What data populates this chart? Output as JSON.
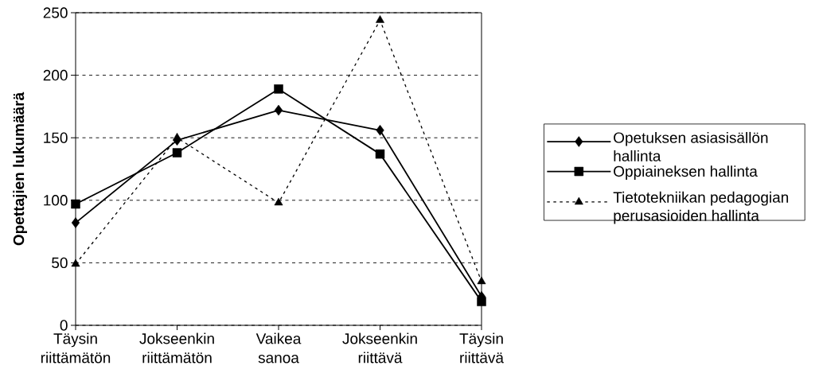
{
  "chart_data": {
    "type": "line",
    "ylabel": "Opettajien lukumäärä",
    "categories": [
      "Täysin riittämätön",
      "Jokseenkin riittämätön",
      "Vaikea sanoa",
      "Jokseenkin riittävä",
      "Täysin riittävä"
    ],
    "series": [
      {
        "name": "Opetuksen asiasisällön hallinta",
        "color": "#000000",
        "marker": "diamond",
        "line_style": "solid",
        "values": [
          82,
          148,
          172,
          156,
          23
        ]
      },
      {
        "name": "Oppiaineksen hallinta",
        "color": "#000000",
        "marker": "square",
        "line_style": "solid",
        "values": [
          97,
          138,
          189,
          137,
          19
        ]
      },
      {
        "name": "Tietotekniikan pedagogian perusasioiden hallinta",
        "color": "#000000",
        "marker": "triangle",
        "line_style": "dashed",
        "values": [
          49,
          150,
          98,
          244,
          35
        ]
      }
    ],
    "ylim": [
      0,
      250
    ],
    "yticks": [
      0,
      50,
      100,
      150,
      200,
      250
    ],
    "grid": "y",
    "legend": "right"
  }
}
